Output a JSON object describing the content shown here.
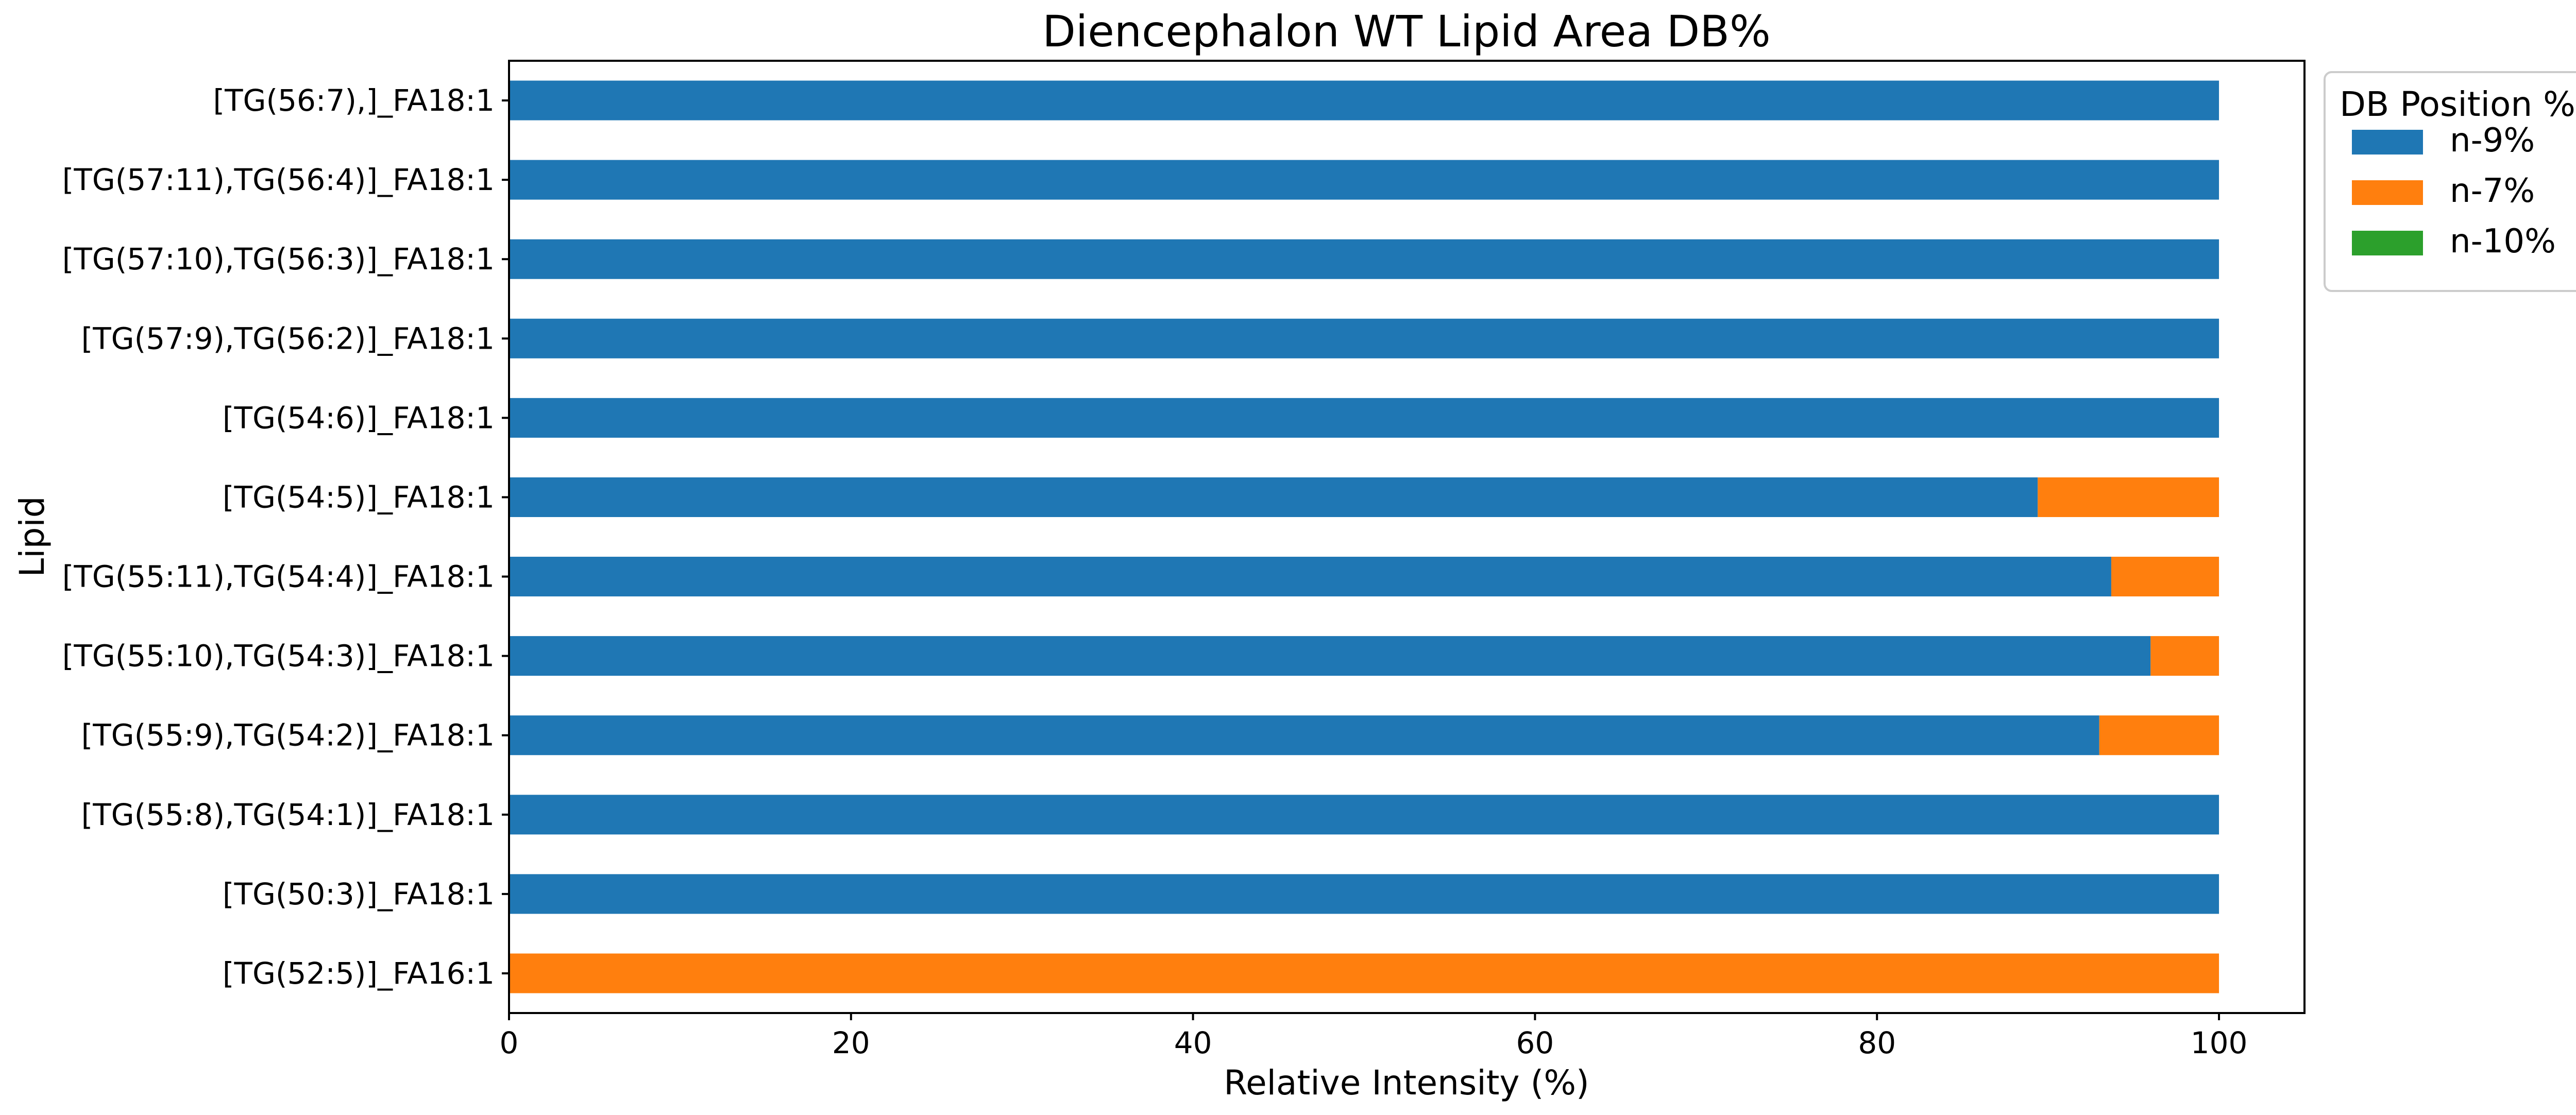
{
  "chart_data": {
    "type": "bar",
    "orientation": "horizontal",
    "stacked": true,
    "title": "Diencephalon WT Lipid Area DB%",
    "xlabel": "Relative Intensity (%)",
    "ylabel": "Lipid",
    "xlim": [
      0,
      105
    ],
    "xticks": [
      0,
      20,
      40,
      60,
      80,
      100
    ],
    "grid": false,
    "legend_title": "DB Position %",
    "legend_placement": "outside-top-right",
    "categories": [
      "[TG(56:7),]_FA18:1",
      "[TG(57:11),TG(56:4)]_FA18:1",
      "[TG(57:10),TG(56:3)]_FA18:1",
      "[TG(57:9),TG(56:2)]_FA18:1",
      "[TG(54:6)]_FA18:1",
      "[TG(54:5)]_FA18:1",
      "[TG(55:11),TG(54:4)]_FA18:1",
      "[TG(55:10),TG(54:3)]_FA18:1",
      "[TG(55:9),TG(54:2)]_FA18:1",
      "[TG(55:8),TG(54:1)]_FA18:1",
      "[TG(50:3)]_FA18:1",
      "[TG(52:5)]_FA16:1"
    ],
    "series": [
      {
        "name": "n-9%",
        "color": "#1f77b4",
        "values": [
          100,
          100,
          100,
          100,
          100,
          89.4,
          93.7,
          96.0,
          93.0,
          100,
          100,
          0
        ]
      },
      {
        "name": "n-7%",
        "color": "#ff7f0e",
        "values": [
          0,
          0,
          0,
          0,
          0,
          10.6,
          6.3,
          4.0,
          7.0,
          0,
          0,
          100
        ]
      },
      {
        "name": "n-10%",
        "color": "#2ca02c",
        "values": [
          0,
          0,
          0,
          0,
          0,
          0,
          0,
          0,
          0,
          0,
          0,
          0
        ]
      }
    ]
  }
}
